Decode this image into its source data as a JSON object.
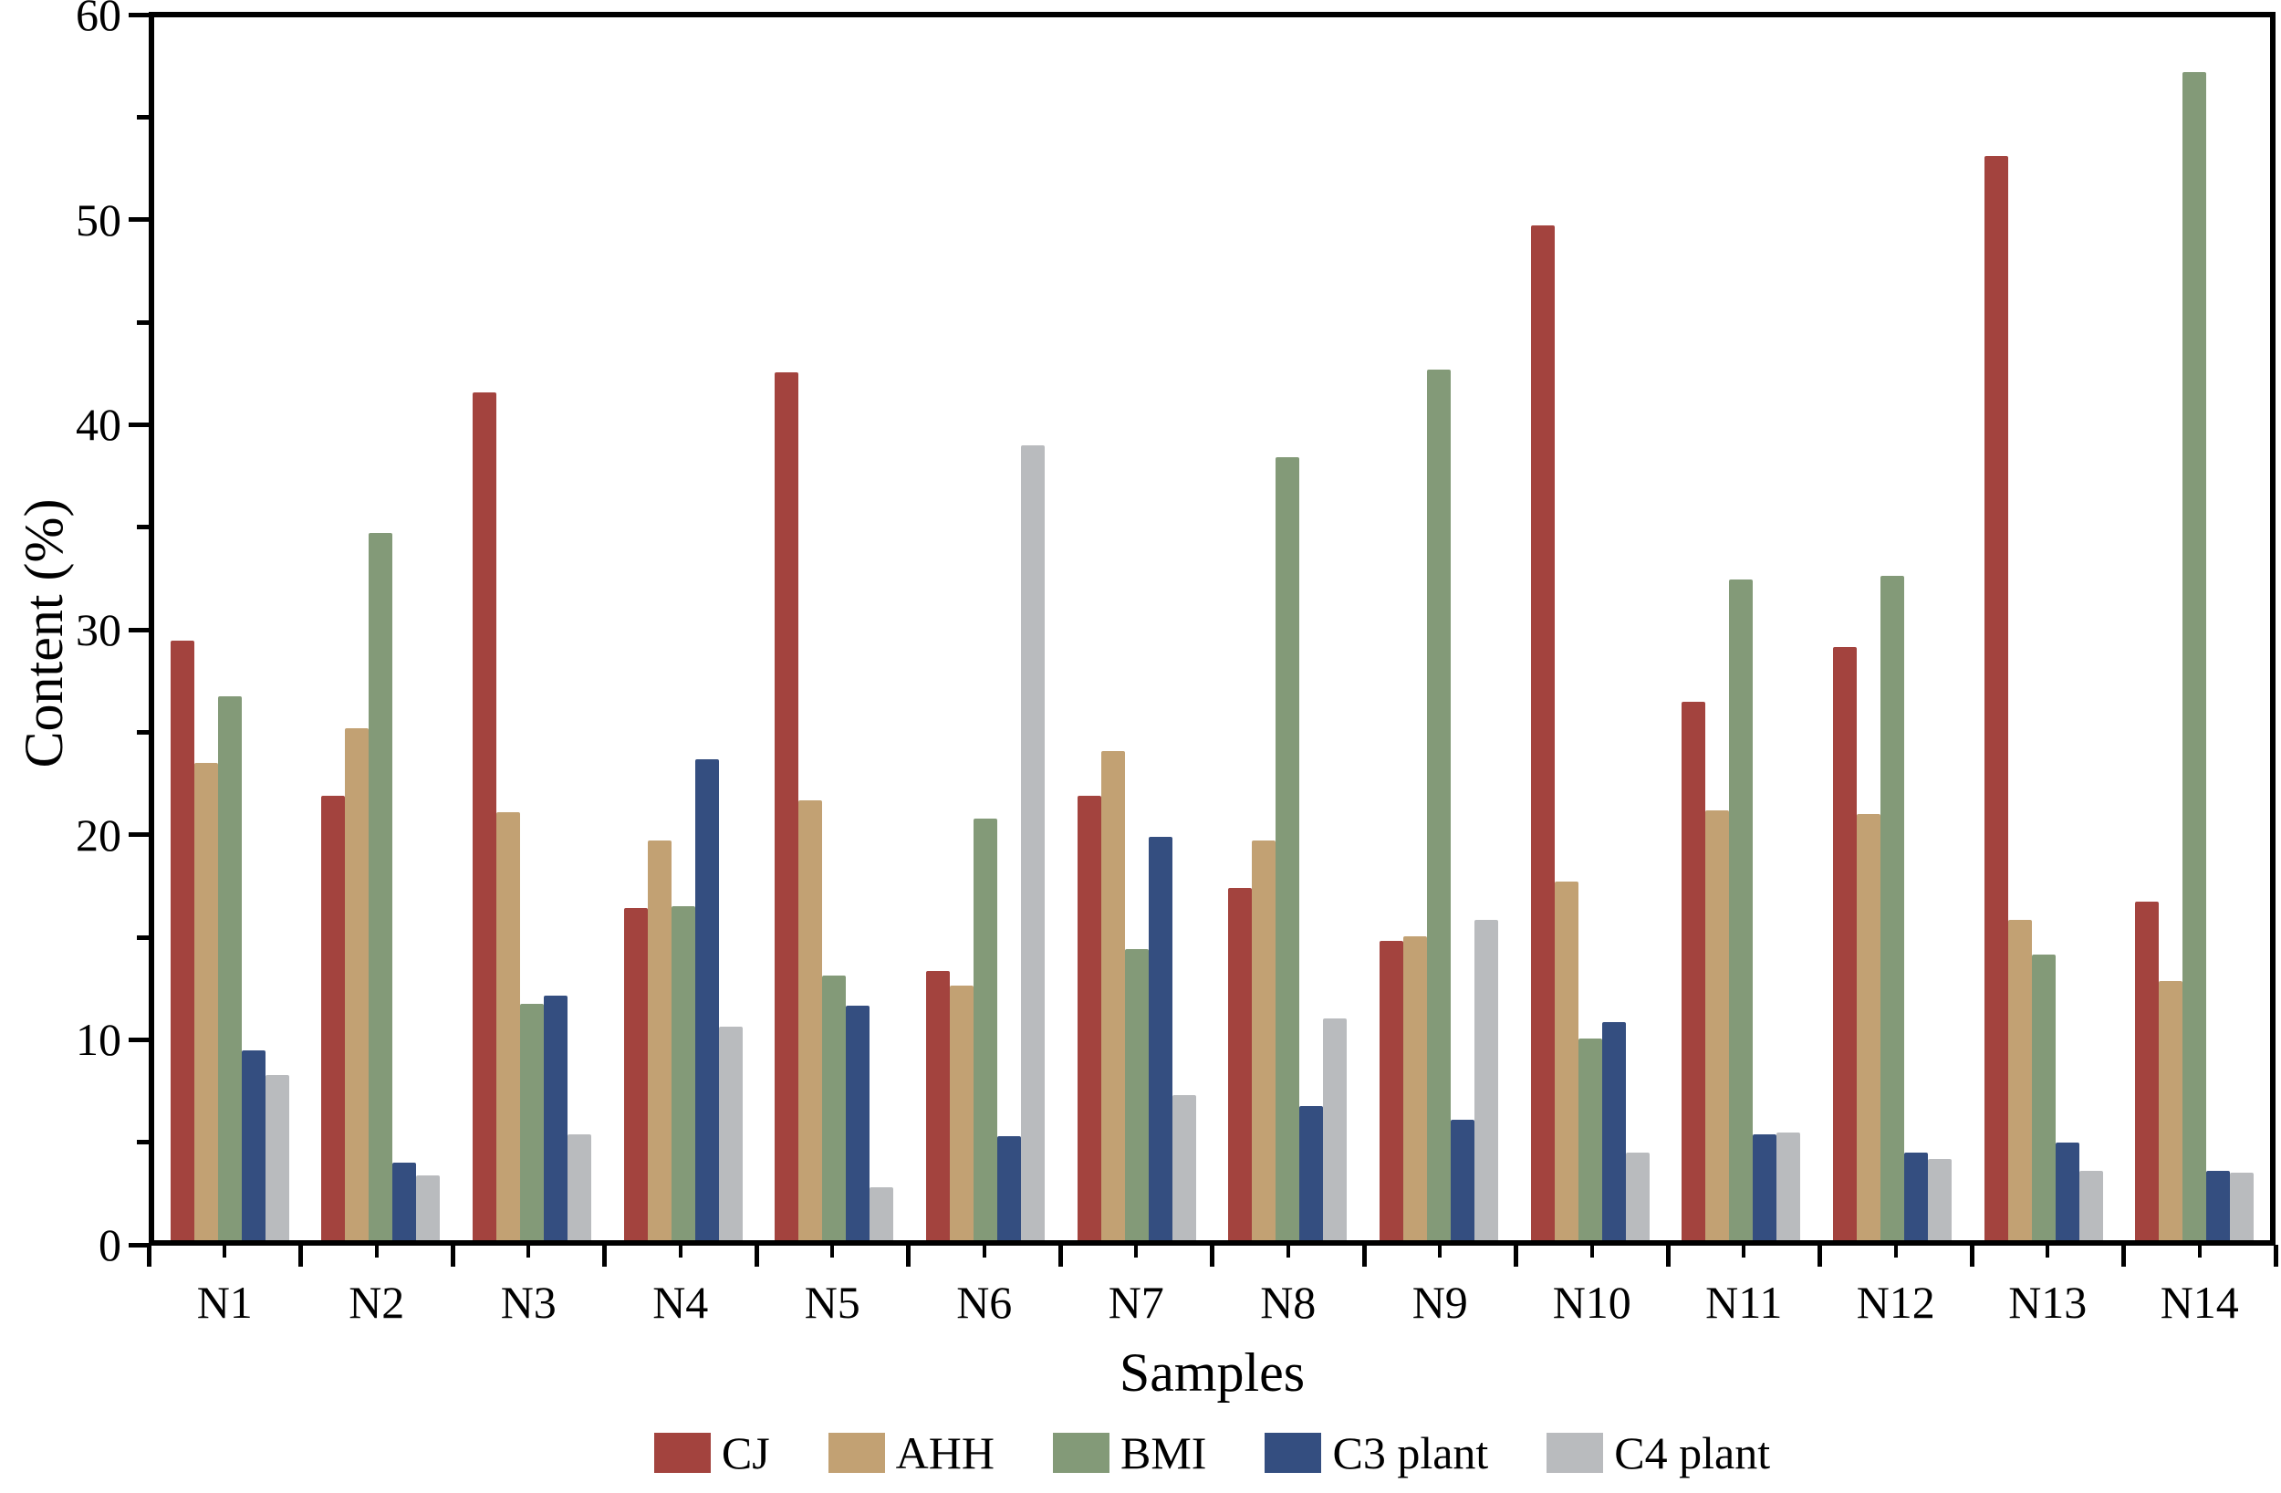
{
  "chart_data": {
    "type": "bar",
    "title": "",
    "xlabel": "Samples",
    "ylabel": "Content (%)",
    "ylim": [
      0,
      60
    ],
    "y_major_ticks": [
      0,
      10,
      20,
      30,
      40,
      50,
      60
    ],
    "y_minor_ticks": [
      5,
      15,
      25,
      35,
      45,
      55
    ],
    "grid": false,
    "legend_position": "bottom",
    "frame": "full-box",
    "categories": [
      "N1",
      "N2",
      "N3",
      "N4",
      "N5",
      "N6",
      "N7",
      "N8",
      "N9",
      "N10",
      "N11",
      "N12",
      "N13",
      "N14"
    ],
    "series": [
      {
        "name": "CJ",
        "color": "#A3433E",
        "values": [
          29.4,
          21.8,
          41.6,
          16.3,
          42.6,
          13.2,
          21.8,
          17.3,
          14.7,
          49.8,
          26.4,
          29.1,
          53.2,
          16.6
        ]
      },
      {
        "name": "AHH",
        "color": "#C2A173",
        "values": [
          23.4,
          25.1,
          21.0,
          19.6,
          21.6,
          12.5,
          24.0,
          19.6,
          14.9,
          17.6,
          21.1,
          20.9,
          15.7,
          12.7
        ]
      },
      {
        "name": "BMI",
        "color": "#839A78",
        "values": [
          26.7,
          34.7,
          11.6,
          16.4,
          13.0,
          20.7,
          14.3,
          38.4,
          42.7,
          9.9,
          32.4,
          32.6,
          14.0,
          57.3
        ]
      },
      {
        "name": "C3 plant",
        "color": "#344E80",
        "values": [
          9.3,
          3.8,
          12.0,
          23.6,
          11.5,
          5.1,
          19.8,
          6.6,
          5.9,
          10.7,
          5.2,
          4.3,
          4.8,
          3.4
        ]
      },
      {
        "name": "C4 plant",
        "color": "#B9BBBE",
        "values": [
          8.1,
          3.2,
          5.2,
          10.5,
          2.6,
          39.0,
          7.1,
          10.9,
          15.7,
          4.3,
          5.3,
          4.0,
          3.4,
          3.3
        ]
      }
    ]
  }
}
